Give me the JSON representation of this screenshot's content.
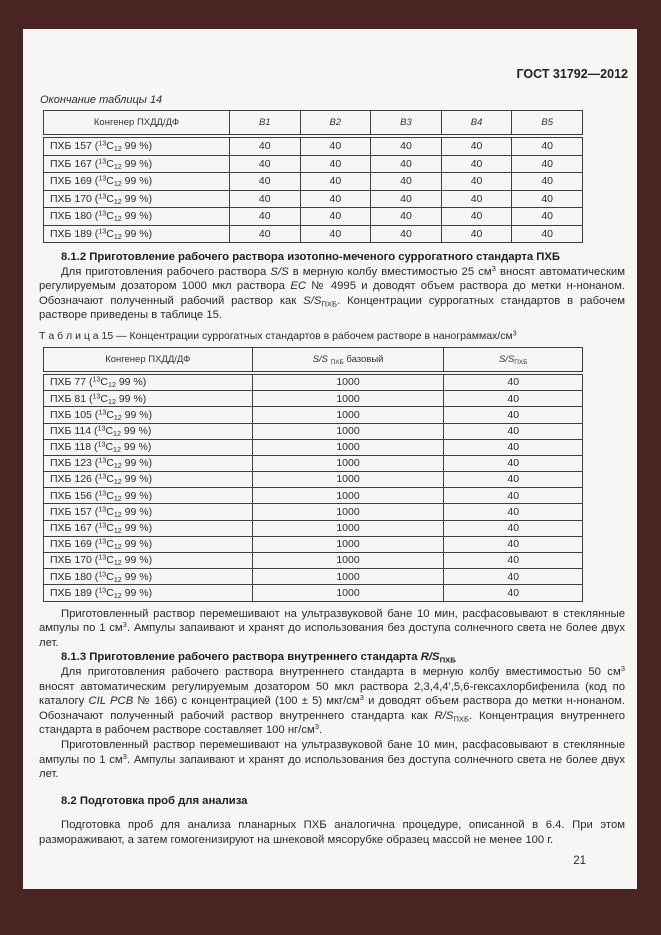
{
  "colors": {
    "frame": "#4a2422",
    "page_background": "#f7f6f4",
    "text": "#2b2b2b",
    "table_border": "#3f3f3f"
  },
  "header": {
    "doc_code": "ГОСТ 31792—2012"
  },
  "table14": {
    "caption": "Окончание таблицы 14",
    "header": {
      "congener": "Конгенер ПХДД/ДФ",
      "samples": [
        "B1",
        "B2",
        "B3",
        "B4",
        "B5"
      ]
    },
    "rows": [
      {
        "label": "ПХБ 157 (<sup>13</sup>C<sub>12</sub> 99 %)",
        "values": [
          "40",
          "40",
          "40",
          "40",
          "40"
        ]
      },
      {
        "label": "ПХБ 167 (<sup>13</sup>C<sub>12</sub> 99 %)",
        "values": [
          "40",
          "40",
          "40",
          "40",
          "40"
        ]
      },
      {
        "label": "ПХБ 169 (<sup>13</sup>C<sub>12</sub> 99 %)",
        "values": [
          "40",
          "40",
          "40",
          "40",
          "40"
        ]
      },
      {
        "label": "ПХБ 170 (<sup>13</sup>C<sub>12</sub> 99 %)",
        "values": [
          "40",
          "40",
          "40",
          "40",
          "40"
        ]
      },
      {
        "label": "ПХБ 180 (<sup>13</sup>C<sub>12</sub> 99 %)",
        "values": [
          "40",
          "40",
          "40",
          "40",
          "40"
        ]
      },
      {
        "label": "ПХБ 189 (<sup>13</sup>C<sub>12</sub> 99 %)",
        "values": [
          "40",
          "40",
          "40",
          "40",
          "40"
        ]
      }
    ]
  },
  "section_812": {
    "heading": "8.1.2 Приготовление рабочего раствора изотопно-меченого суррогатного стандарта ПХБ",
    "paragraph": "Для приготовления рабочего раствора <i>S/S</i> в мерную колбу вместимостью 25 см<sup>3</sup> вносят автоматическим регулируемым дозатором 1000 мкл раствора <i>EC</i> № 4995 и доводят объем раствора до метки н-нонаном. Обозначают полученный рабочий раствор как <i>S/S</i><sub>ПХБ</sub>. Концентрации суррогатных стандартов в рабочем растворе приведены в таблице 15."
  },
  "table15": {
    "caption": "Т а б л и ц а  15 — Концентрации суррогатных стандартов в рабочем растворе в нанограммах/см<sup>3</sup>",
    "header": {
      "congener": "Конгенер ПХДД/ДФ",
      "base": "<i>S/S</i> <sub>ПХБ</sub> базовый",
      "working": "<i>S/S</i><sub>ПХБ</sub>"
    },
    "rows": [
      {
        "label": "ПХБ 77 (<sup>13</sup>C<sub>12</sub> 99 %)",
        "base": "1000",
        "working": "40"
      },
      {
        "label": "ПХБ 81 (<sup>13</sup>C<sub>12</sub> 99 %)",
        "base": "1000",
        "working": "40"
      },
      {
        "label": "ПХБ 105 (<sup>13</sup>C<sub>12</sub> 99 %)",
        "base": "1000",
        "working": "40"
      },
      {
        "label": "ПХБ 114 (<sup>13</sup>C<sub>12</sub> 99 %)",
        "base": "1000",
        "working": "40"
      },
      {
        "label": "ПХБ 118 (<sup>13</sup>C<sub>12</sub> 99 %)",
        "base": "1000",
        "working": "40"
      },
      {
        "label": "ПХБ 123 (<sup>13</sup>C<sub>12</sub> 99 %)",
        "base": "1000",
        "working": "40"
      },
      {
        "label": "ПХБ 126 (<sup>13</sup>C<sub>12</sub> 99 %)",
        "base": "1000",
        "working": "40"
      },
      {
        "label": "ПХБ 156 (<sup>13</sup>C<sub>12</sub> 99 %)",
        "base": "1000",
        "working": "40"
      },
      {
        "label": "ПХБ 157 (<sup>13</sup>C<sub>12</sub> 99 %)",
        "base": "1000",
        "working": "40"
      },
      {
        "label": "ПХБ 167 (<sup>13</sup>C<sub>12</sub> 99 %)",
        "base": "1000",
        "working": "40"
      },
      {
        "label": "ПХБ 169 (<sup>13</sup>C<sub>12</sub> 99 %)",
        "base": "1000",
        "working": "40"
      },
      {
        "label": "ПХБ 170 (<sup>13</sup>C<sub>12</sub> 99 %)",
        "base": "1000",
        "working": "40"
      },
      {
        "label": "ПХБ 180 (<sup>13</sup>C<sub>12</sub> 99 %)",
        "base": "1000",
        "working": "40"
      },
      {
        "label": "ПХБ 189 (<sup>13</sup>C<sub>12</sub> 99 %)",
        "base": "1000",
        "working": "40"
      }
    ]
  },
  "after_table15": {
    "paragraph": "Приготовленный раствор перемешивают на ультразвуковой бане 10 мин, расфасовывают в стеклянные ампулы по 1 см<sup>3</sup>. Ампулы запаивают и хранят до использования без доступа солнечного света не более двух лет."
  },
  "section_813": {
    "heading": "8.1.3 Приготовление рабочего раствора внутреннего стандарта <i>R/S</i><sub>ПХБ</sub>",
    "paragraph1": "Для приготовления рабочего раствора внутреннего стандарта в мерную колбу вместимостью 50 см<sup>3</sup> вносят автоматическим регулируемым дозатором 50 мкл раствора 2,3,4,4',5,6-гексахлорбифенила (код по каталогу <i>CIL PCB</i> № 166) с концентрацией (100 ± 5) мкг/см<sup>3</sup> и доводят объем раствора до метки н-нонаном. Обозначают полученный рабочий раствор внутреннего стандарта как <i>R/S</i><sub>ПХБ</sub>. Концентрация внутреннего стандарта в рабочем растворе составляет 100 нг/см<sup>3</sup>.",
    "paragraph2": "Приготовленный раствор перемешивают на ультразвуковой бане 10 мин, расфасовывают в стеклянные ампулы по 1 см<sup>3</sup>. Ампулы запаивают и хранят до использования без доступа солнечного света не более двух лет."
  },
  "section_82": {
    "heading": "8.2 Подготовка проб для анализа",
    "paragraph": "Подготовка проб для анализа планарных ПХБ аналогична процедуре, описанной в 6.4. При этом размораживают, а затем гомогенизируют на шнековой мясорубке образец массой не менее 100 г."
  },
  "footer": {
    "page_number": "21"
  }
}
